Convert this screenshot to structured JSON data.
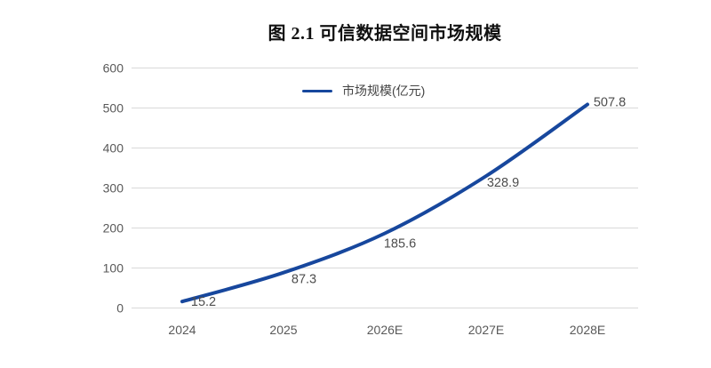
{
  "title": "图 2.1 可信数据空间市场规模",
  "legend": {
    "label": "市场规模(亿元)"
  },
  "colors": {
    "line": "#17479d",
    "grid": "#d9d9d9",
    "axis_text": "#595959",
    "value_label": "#4d4d4d",
    "title_text": "#111111"
  },
  "chart_data": {
    "type": "line",
    "title": "图 2.1 可信数据空间市场规模",
    "categories": [
      "2024",
      "2025",
      "2026E",
      "2027E",
      "2028E"
    ],
    "series": [
      {
        "name": "市场规模(亿元)",
        "values": [
          15.2,
          87.3,
          185.6,
          328.9,
          507.8
        ],
        "labels": [
          "15.2",
          "87.3",
          "185.6",
          "328.9",
          "507.8"
        ]
      }
    ],
    "xlabel": "",
    "ylabel": "",
    "ylim": [
      0,
      600
    ],
    "yticks": [
      0,
      100,
      200,
      300,
      400,
      500,
      600
    ],
    "grid": true,
    "legend_position": "top-center",
    "smooth": true,
    "data_labels": true
  }
}
